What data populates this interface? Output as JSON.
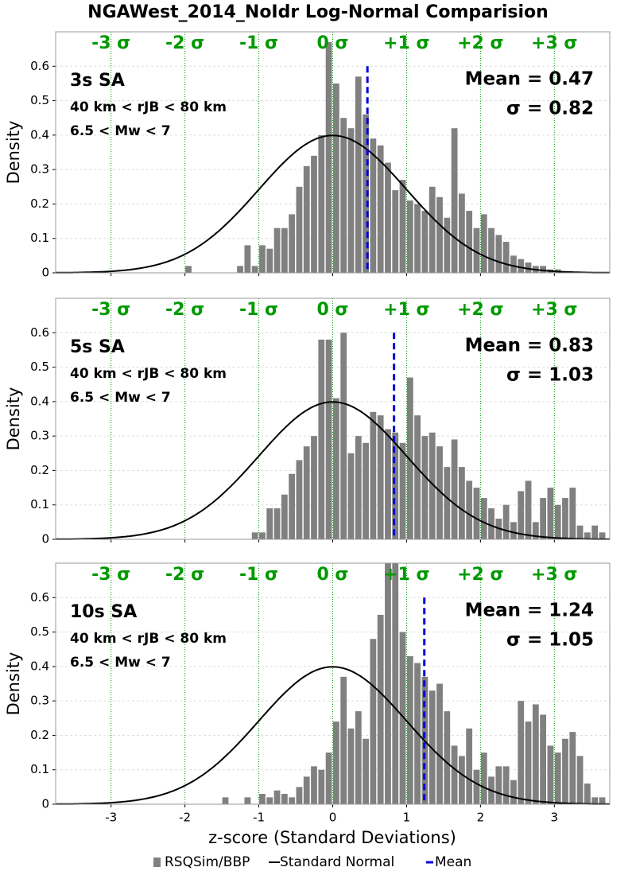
{
  "figure": {
    "title": "NGAWest_2014_NoIdr Log-Normal Comparision",
    "xlabel": "z-score (Standard Deviations)",
    "ylabel": "Density",
    "legend": [
      {
        "name": "RSQSim/BBP",
        "color": "#808080",
        "kind": "bar"
      },
      {
        "name": "Standard Normal",
        "color": "#000000",
        "kind": "line"
      },
      {
        "name": "Mean",
        "color": "#0000dd",
        "kind": "dash"
      }
    ]
  },
  "chart_data": [
    {
      "type": "histogram",
      "color": "#808080",
      "curve_color": "#000000",
      "mean_color": "#0000dd",
      "sigma_color": "#009900",
      "period_label": "3s SA",
      "distance_label": "40 km < rJB < 80 km",
      "magnitude_label": "6.5 < Mw < 7",
      "mean": 0.47,
      "mean_label": "Mean = 0.47",
      "sd_label": "σ = 0.82",
      "normal": {
        "mean": 0,
        "sd": 1
      },
      "sigma_lines": [
        {
          "value": -3,
          "label": "-3 σ"
        },
        {
          "value": -2,
          "label": "-2 σ"
        },
        {
          "value": -1,
          "label": "-1 σ"
        },
        {
          "value": 0,
          "label": "0 σ"
        },
        {
          "value": 1,
          "label": "+1 σ"
        },
        {
          "value": 2,
          "label": "+2 σ"
        },
        {
          "value": 3,
          "label": "+3 σ"
        }
      ],
      "bins": [
        -3.7,
        -3.6,
        -3.5,
        -3.4,
        -3.3,
        -3.2,
        -3.1,
        -3.0,
        -2.9,
        -2.8,
        -2.7,
        -2.6,
        -2.5,
        -2.4,
        -2.3,
        -2.2,
        -2.1,
        -2.0,
        -1.9,
        -1.8,
        -1.7,
        -1.6,
        -1.5,
        -1.4,
        -1.3,
        -1.2,
        -1.1,
        -1.0,
        -0.9,
        -0.8,
        -0.7,
        -0.6,
        -0.5,
        -0.4,
        -0.3,
        -0.2,
        -0.1,
        0.0,
        0.1,
        0.2,
        0.3,
        0.4,
        0.5,
        0.6,
        0.7,
        0.8,
        0.9,
        1.0,
        1.1,
        1.2,
        1.3,
        1.4,
        1.5,
        1.6,
        1.7,
        1.8,
        1.9,
        2.0,
        2.1,
        2.2,
        2.3,
        2.4,
        2.5,
        2.6,
        2.7,
        2.8,
        2.9,
        3.0,
        3.1,
        3.2,
        3.3,
        3.4,
        3.5,
        3.6,
        3.7
      ],
      "values": [
        0,
        0,
        0,
        0,
        0,
        0,
        0,
        0,
        0,
        0,
        0,
        0,
        0,
        0,
        0,
        0,
        0,
        0.02,
        0,
        0,
        0,
        0,
        0,
        0,
        0.02,
        0.08,
        0.02,
        0.08,
        0.07,
        0.13,
        0.13,
        0.17,
        0.25,
        0.31,
        0.34,
        0.4,
        0.67,
        0.55,
        0.45,
        0.42,
        0.57,
        0.46,
        0.39,
        0.37,
        0.32,
        0.24,
        0.27,
        0.21,
        0.2,
        0.18,
        0.25,
        0.22,
        0.16,
        0.42,
        0.23,
        0.18,
        0.13,
        0.17,
        0.13,
        0.11,
        0.09,
        0.05,
        0.04,
        0.03,
        0.02,
        0.02,
        0.01,
        0.01,
        0,
        0,
        0,
        0,
        0,
        0
      ],
      "xlim": [
        -3.75,
        3.75
      ],
      "ylim": [
        0,
        0.7
      ],
      "xticks": [
        -3,
        -2,
        -1,
        0,
        1,
        2,
        3
      ],
      "yticks": [
        0,
        0.1,
        0.2,
        0.3,
        0.4,
        0.5,
        0.6
      ],
      "xtick_labels": false,
      "grid": true
    },
    {
      "type": "histogram",
      "color": "#808080",
      "curve_color": "#000000",
      "mean_color": "#0000dd",
      "sigma_color": "#009900",
      "period_label": "5s SA",
      "distance_label": "40 km < rJB < 80 km",
      "magnitude_label": "6.5 < Mw < 7",
      "mean": 0.83,
      "mean_label": "Mean = 0.83",
      "sd_label": "σ = 1.03",
      "normal": {
        "mean": 0,
        "sd": 1
      },
      "sigma_lines": [
        {
          "value": -3,
          "label": "-3 σ"
        },
        {
          "value": -2,
          "label": "-2 σ"
        },
        {
          "value": -1,
          "label": "-1 σ"
        },
        {
          "value": 0,
          "label": "0 σ"
        },
        {
          "value": 1,
          "label": "+1 σ"
        },
        {
          "value": 2,
          "label": "+2 σ"
        },
        {
          "value": 3,
          "label": "+3 σ"
        }
      ],
      "bins": [
        -3.7,
        -3.6,
        -3.5,
        -3.4,
        -3.3,
        -3.2,
        -3.1,
        -3.0,
        -2.9,
        -2.8,
        -2.7,
        -2.6,
        -2.5,
        -2.4,
        -2.3,
        -2.2,
        -2.1,
        -2.0,
        -1.9,
        -1.8,
        -1.7,
        -1.6,
        -1.5,
        -1.4,
        -1.3,
        -1.2,
        -1.1,
        -1.0,
        -0.9,
        -0.8,
        -0.7,
        -0.6,
        -0.5,
        -0.4,
        -0.3,
        -0.2,
        -0.1,
        0.0,
        0.1,
        0.2,
        0.3,
        0.4,
        0.5,
        0.6,
        0.7,
        0.8,
        0.9,
        1.0,
        1.1,
        1.2,
        1.3,
        1.4,
        1.5,
        1.6,
        1.7,
        1.8,
        1.9,
        2.0,
        2.1,
        2.2,
        2.3,
        2.4,
        2.5,
        2.6,
        2.7,
        2.8,
        2.9,
        3.0,
        3.1,
        3.2,
        3.3,
        3.4,
        3.5,
        3.6,
        3.7
      ],
      "values": [
        0,
        0,
        0,
        0,
        0,
        0,
        0,
        0,
        0,
        0,
        0,
        0,
        0,
        0,
        0,
        0,
        0,
        0,
        0,
        0,
        0,
        0,
        0,
        0,
        0,
        0,
        0.02,
        0.02,
        0.09,
        0.09,
        0.13,
        0.19,
        0.23,
        0.27,
        0.3,
        0.58,
        0.58,
        0.41,
        0.6,
        0.25,
        0.3,
        0.28,
        0.37,
        0.36,
        0.32,
        0.31,
        0.28,
        0.47,
        0.36,
        0.3,
        0.31,
        0.27,
        0.21,
        0.29,
        0.21,
        0.17,
        0.15,
        0.12,
        0.09,
        0.06,
        0.1,
        0.05,
        0.14,
        0.17,
        0.05,
        0.12,
        0.15,
        0.1,
        0.12,
        0.15,
        0.04,
        0.02,
        0.04,
        0.02
      ],
      "xlim": [
        -3.75,
        3.75
      ],
      "ylim": [
        0,
        0.7
      ],
      "xticks": [
        -3,
        -2,
        -1,
        0,
        1,
        2,
        3
      ],
      "yticks": [
        0,
        0.1,
        0.2,
        0.3,
        0.4,
        0.5,
        0.6
      ],
      "xtick_labels": false,
      "grid": true
    },
    {
      "type": "histogram",
      "color": "#808080",
      "curve_color": "#000000",
      "mean_color": "#0000dd",
      "sigma_color": "#009900",
      "period_label": "10s SA",
      "distance_label": "40 km < rJB < 80 km",
      "magnitude_label": "6.5 < Mw < 7",
      "mean": 1.24,
      "mean_label": "Mean = 1.24",
      "sd_label": "σ = 1.05",
      "normal": {
        "mean": 0,
        "sd": 1
      },
      "sigma_lines": [
        {
          "value": -3,
          "label": "-3 σ"
        },
        {
          "value": -2,
          "label": "-2 σ"
        },
        {
          "value": -1,
          "label": "-1 σ"
        },
        {
          "value": 0,
          "label": "0 σ"
        },
        {
          "value": 1,
          "label": "+1 σ"
        },
        {
          "value": 2,
          "label": "+2 σ"
        },
        {
          "value": 3,
          "label": "+3 σ"
        }
      ],
      "bins": [
        -3.7,
        -3.6,
        -3.5,
        -3.4,
        -3.3,
        -3.2,
        -3.1,
        -3.0,
        -2.9,
        -2.8,
        -2.7,
        -2.6,
        -2.5,
        -2.4,
        -2.3,
        -2.2,
        -2.1,
        -2.0,
        -1.9,
        -1.8,
        -1.7,
        -1.6,
        -1.5,
        -1.4,
        -1.3,
        -1.2,
        -1.1,
        -1.0,
        -0.9,
        -0.8,
        -0.7,
        -0.6,
        -0.5,
        -0.4,
        -0.3,
        -0.2,
        -0.1,
        0.0,
        0.1,
        0.2,
        0.3,
        0.4,
        0.5,
        0.6,
        0.7,
        0.8,
        0.9,
        1.0,
        1.1,
        1.2,
        1.3,
        1.4,
        1.5,
        1.6,
        1.7,
        1.8,
        1.9,
        2.0,
        2.1,
        2.2,
        2.3,
        2.4,
        2.5,
        2.6,
        2.7,
        2.8,
        2.9,
        3.0,
        3.1,
        3.2,
        3.3,
        3.4,
        3.5,
        3.6,
        3.7
      ],
      "values": [
        0,
        0,
        0,
        0,
        0,
        0,
        0,
        0,
        0,
        0,
        0,
        0,
        0,
        0,
        0,
        0,
        0,
        0,
        0,
        0,
        0,
        0,
        0.02,
        0,
        0,
        0.02,
        0,
        0.03,
        0.02,
        0.04,
        0.03,
        0.02,
        0.05,
        0.08,
        0.11,
        0.1,
        0.15,
        0.24,
        0.37,
        0.22,
        0.27,
        0.19,
        0.48,
        0.55,
        0.72,
        0.7,
        0.5,
        0.43,
        0.41,
        0.37,
        0.33,
        0.35,
        0.27,
        0.17,
        0.14,
        0.22,
        0.1,
        0.15,
        0.08,
        0.11,
        0.11,
        0.07,
        0.3,
        0.24,
        0.29,
        0.26,
        0.17,
        0.15,
        0.19,
        0.21,
        0.14,
        0.06,
        0.02,
        0.02
      ],
      "xlim": [
        -3.75,
        3.75
      ],
      "ylim": [
        0,
        0.7
      ],
      "xticks": [
        -3,
        -2,
        -1,
        0,
        1,
        2,
        3
      ],
      "yticks": [
        0,
        0.1,
        0.2,
        0.3,
        0.4,
        0.5,
        0.6
      ],
      "xtick_labels": true,
      "grid": true
    }
  ]
}
